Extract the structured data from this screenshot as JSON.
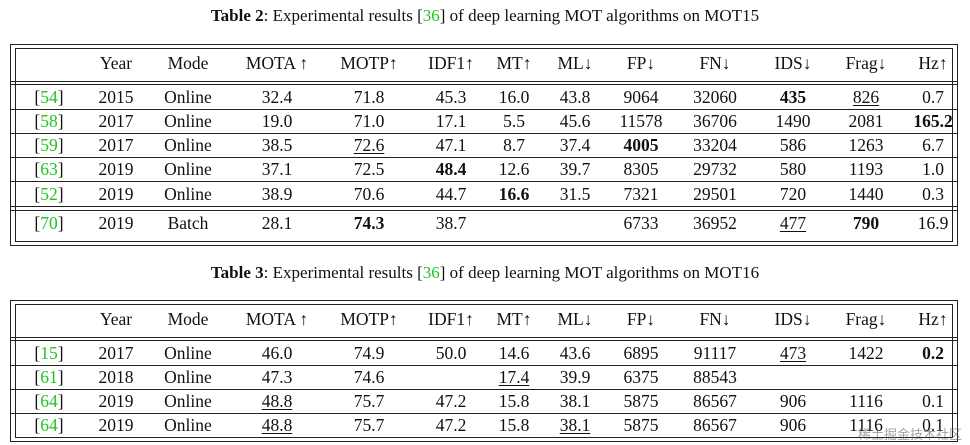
{
  "table2": {
    "caption_bold": "Table 2",
    "caption_pre": ": Experimental results [",
    "caption_ref": "36",
    "caption_post": "] of deep learning MOT algorithms on MOT15",
    "headers": [
      "",
      "Year",
      "Mode",
      "MOTA ↑",
      "MOTP↑",
      "IDF1↑",
      "MT↑",
      "ML↓",
      "FP↓",
      "FN↓",
      "IDS↓",
      "Frag↓",
      "Hz↑"
    ],
    "rows": [
      {
        "ref": "54",
        "cells": [
          "2015",
          "Online",
          "32.4",
          "71.8",
          "45.3",
          "16.0",
          "43.8",
          "9064",
          "32060",
          "435",
          "826",
          "0.7"
        ],
        "bold": [
          9
        ],
        "underline": [
          10
        ]
      },
      {
        "ref": "58",
        "cells": [
          "2017",
          "Online",
          "19.0",
          "71.0",
          "17.1",
          "5.5",
          "45.6",
          "11578",
          "36706",
          "1490",
          "2081",
          "165.2"
        ],
        "bold": [
          11
        ],
        "underline": []
      },
      {
        "ref": "59",
        "cells": [
          "2017",
          "Online",
          "38.5",
          "72.6",
          "47.1",
          "8.7",
          "37.4",
          "4005",
          "33204",
          "586",
          "1263",
          "6.7"
        ],
        "bold": [
          7
        ],
        "underline": [
          3
        ]
      },
      {
        "ref": "63",
        "cells": [
          "2019",
          "Online",
          "37.1",
          "72.5",
          "48.4",
          "12.6",
          "39.7",
          "8305",
          "29732",
          "580",
          "1193",
          "1.0"
        ],
        "bold": [
          4
        ],
        "underline": []
      },
      {
        "ref": "52",
        "cells": [
          "2019",
          "Online",
          "38.9",
          "70.6",
          "44.7",
          "16.6",
          "31.5",
          "7321",
          "29501",
          "720",
          "1440",
          "0.3"
        ],
        "bold": [
          5
        ],
        "underline": []
      },
      {
        "ref": "70",
        "cells": [
          "2019",
          "Batch",
          "28.1",
          "74.3",
          "38.7",
          "",
          "",
          "6733",
          "36952",
          "477",
          "790",
          "16.9"
        ],
        "bold": [
          3,
          10
        ],
        "underline": [
          9
        ]
      }
    ]
  },
  "table3": {
    "caption_bold": "Table 3",
    "caption_pre": ": Experimental results [",
    "caption_ref": "36",
    "caption_post": "] of deep learning MOT algorithms on MOT16",
    "headers": [
      "",
      "Year",
      "Mode",
      "MOTA ↑",
      "MOTP↑",
      "IDF1↑",
      "MT↑",
      "ML↓",
      "FP↓",
      "FN↓",
      "IDS↓",
      "Frag↓",
      "Hz↑"
    ],
    "rows": [
      {
        "ref": "15",
        "cells": [
          "2017",
          "Online",
          "46.0",
          "74.9",
          "50.0",
          "14.6",
          "43.6",
          "6895",
          "91117",
          "473",
          "1422",
          "0.2"
        ],
        "bold": [
          11
        ],
        "underline": [
          9
        ]
      },
      {
        "ref": "61",
        "cells": [
          "2018",
          "Online",
          "47.3",
          "74.6",
          "",
          "17.4",
          "39.9",
          "6375",
          "88543",
          "",
          "",
          ""
        ],
        "bold": [],
        "underline": [
          5
        ]
      },
      {
        "ref": "64",
        "cells": [
          "2019",
          "Online",
          "48.8",
          "75.7",
          "47.2",
          "15.8",
          "38.1",
          "5875",
          "86567",
          "906",
          "1116",
          "0.1"
        ],
        "bold": [],
        "underline": [
          2
        ]
      },
      {
        "ref": "64",
        "cells": [
          "2019",
          "Online",
          "48.8",
          "75.7",
          "47.2",
          "15.8",
          "38.1",
          "5875",
          "86567",
          "906",
          "1116",
          "0.1"
        ],
        "bold": [],
        "underline": [
          2,
          6
        ]
      }
    ]
  },
  "watermark": "稀土掘金技术社区"
}
